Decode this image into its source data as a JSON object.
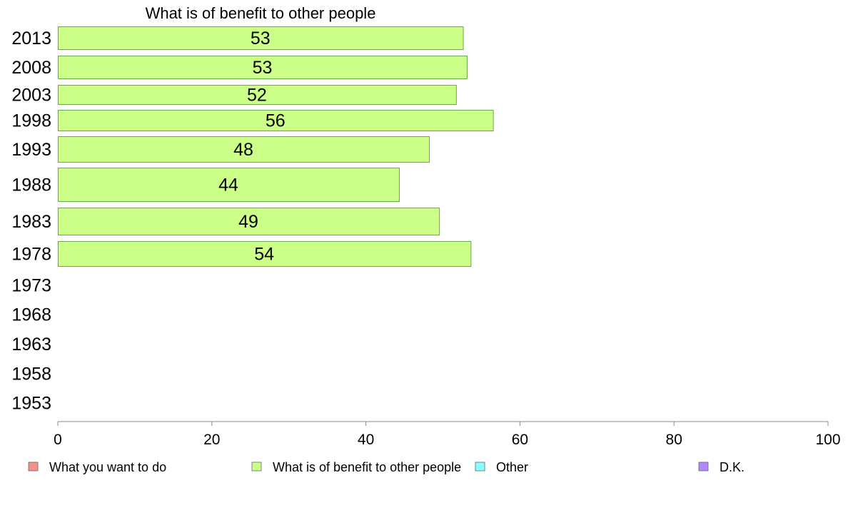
{
  "chart_data": {
    "type": "bar",
    "orientation": "horizontal",
    "title": "What is of benefit to other people",
    "xlabel": "",
    "ylabel": "",
    "xlim": [
      0,
      100
    ],
    "x_ticks": [
      "0",
      "20",
      "40",
      "60",
      "80",
      "100"
    ],
    "categories": [
      "2013",
      "2008",
      "2003",
      "1998",
      "1993",
      "1988",
      "1983",
      "1978",
      "1973",
      "1968",
      "1963",
      "1958",
      "1953"
    ],
    "series": [
      {
        "name": "What is of benefit to other people",
        "color": "#ccff88",
        "values": [
          52.6,
          53.1,
          51.7,
          56.5,
          48.2,
          44.3,
          49.5,
          53.6,
          null,
          null,
          null,
          null,
          null
        ],
        "labels": [
          "53",
          "53",
          "52",
          "56",
          "48",
          "44",
          "49",
          "54",
          "",
          "",
          "",
          "",
          ""
        ]
      }
    ],
    "legend": {
      "position": "bottom",
      "items": [
        {
          "label": "What you want to do",
          "color": "#f4908c"
        },
        {
          "label": "What is of benefit to other people",
          "color": "#ccff88"
        },
        {
          "label": "Other",
          "color": "#88ffff"
        },
        {
          "label": "D.K.",
          "color": "#b388ff"
        }
      ]
    },
    "grid": false
  }
}
